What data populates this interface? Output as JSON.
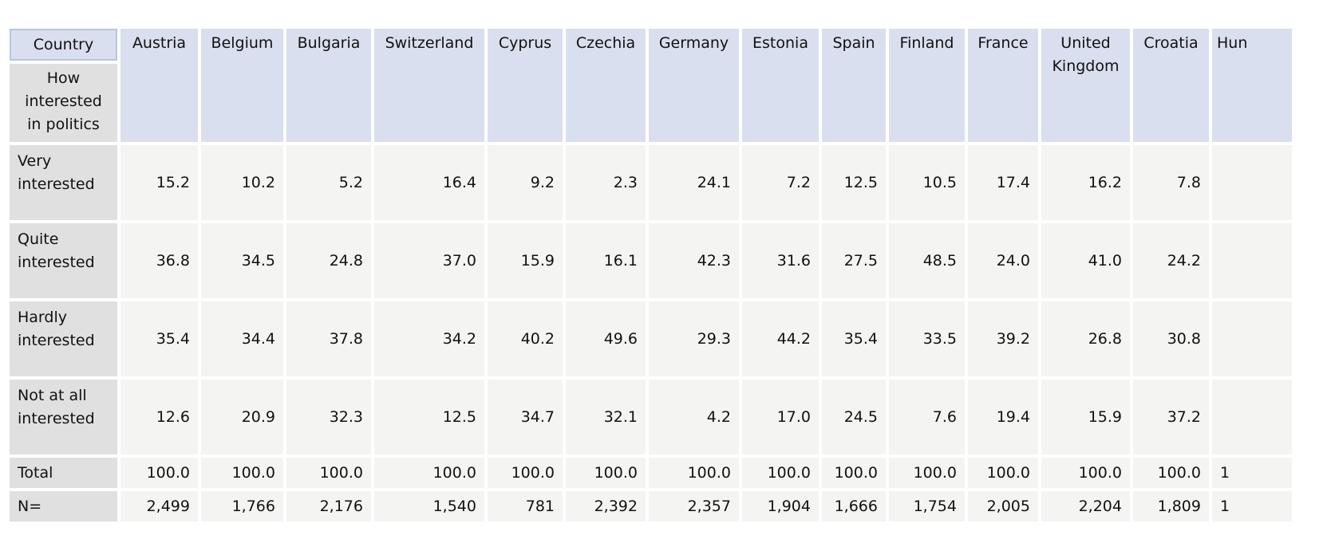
{
  "table": {
    "corner_label": "Country",
    "row_dim_label": "How interested in politics",
    "columns": [
      "Austria",
      "Belgium",
      "Bulgaria",
      "Switzerland",
      "Cyprus",
      "Czechia",
      "Germany",
      "Estonia",
      "Spain",
      "Finland",
      "France",
      "United Kingdom",
      "Croatia",
      "Hun"
    ],
    "rows": [
      {
        "label": "Very interested",
        "values": [
          "15.2",
          "10.2",
          "5.2",
          "16.4",
          "9.2",
          "2.3",
          "24.1",
          "7.2",
          "12.5",
          "10.5",
          "17.4",
          "16.2",
          "7.8",
          ""
        ]
      },
      {
        "label": "Quite interested",
        "values": [
          "36.8",
          "34.5",
          "24.8",
          "37.0",
          "15.9",
          "16.1",
          "42.3",
          "31.6",
          "27.5",
          "48.5",
          "24.0",
          "41.0",
          "24.2",
          ""
        ]
      },
      {
        "label": "Hardly interested",
        "values": [
          "35.4",
          "34.4",
          "37.8",
          "34.2",
          "40.2",
          "49.6",
          "29.3",
          "44.2",
          "35.4",
          "33.5",
          "39.2",
          "26.8",
          "30.8",
          ""
        ]
      },
      {
        "label": "Not at all interested",
        "values": [
          "12.6",
          "20.9",
          "32.3",
          "12.5",
          "34.7",
          "32.1",
          "4.2",
          "17.0",
          "24.5",
          "7.6",
          "19.4",
          "15.9",
          "37.2",
          ""
        ]
      },
      {
        "label": "Total",
        "values": [
          "100.0",
          "100.0",
          "100.0",
          "100.0",
          "100.0",
          "100.0",
          "100.0",
          "100.0",
          "100.0",
          "100.0",
          "100.0",
          "100.0",
          "100.0",
          "1"
        ]
      },
      {
        "label": "N=",
        "values": [
          "2,499",
          "1,766",
          "2,176",
          "1,540",
          "781",
          "2,392",
          "2,357",
          "1,904",
          "1,666",
          "1,754",
          "2,005",
          "2,204",
          "1,809",
          "1"
        ]
      }
    ]
  }
}
